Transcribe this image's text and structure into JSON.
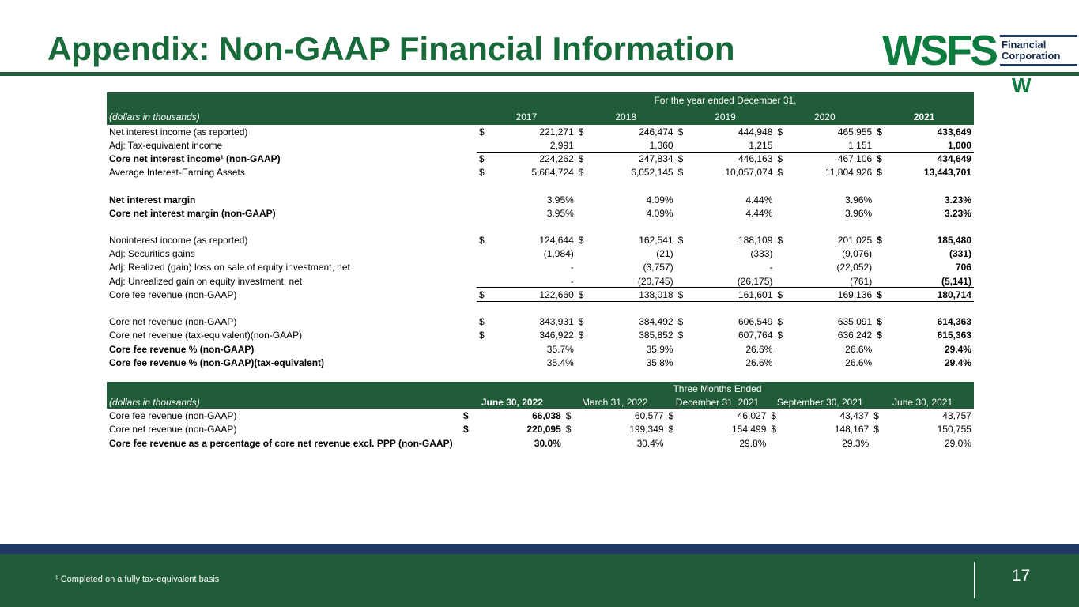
{
  "slide": {
    "title": "Appendix: Non-GAAP Financial Information",
    "page_number": "17",
    "footnote": "¹ Completed on a fully tax-equivalent basis"
  },
  "logo": {
    "wordmark": "WSFS",
    "name_line1": "Financial",
    "name_line2": "Corporation",
    "flourish": "W"
  },
  "colors": {
    "green": "#215C38",
    "navy": "#1F3864",
    "logo_green": "#0E7C3F",
    "title_green": "#186A3B"
  },
  "annual_table": {
    "header_span": "For the year ended December 31,",
    "corner_label": "(dollars in thousands)",
    "columns": [
      "2017",
      "2018",
      "2019",
      "2020",
      "2021"
    ],
    "bold_col": 4,
    "rows": [
      {
        "label": "Net interest income (as reported)",
        "dollar": true,
        "values": [
          "221,271",
          "246,474",
          "444,948",
          "465,955",
          "433,649"
        ]
      },
      {
        "label": "Adj: Tax-equivalent income",
        "values": [
          "2,991",
          "1,360",
          "1,215",
          "1,151",
          "1,000"
        ]
      },
      {
        "label": "Core net interest income¹ (non-GAAP)",
        "bold": true,
        "dollar": true,
        "topline": true,
        "values": [
          "224,262",
          "247,834",
          "446,163",
          "467,106",
          "434,649"
        ]
      },
      {
        "label": "Average Interest-Earning Assets",
        "dollar": true,
        "values": [
          "5,684,724",
          "6,052,145",
          "10,057,074",
          "11,804,926",
          "13,443,701"
        ]
      },
      {
        "spacer": true
      },
      {
        "label": "Net interest margin",
        "bold": true,
        "values": [
          "3.95%",
          "4.09%",
          "4.44%",
          "3.96%",
          "3.23%"
        ]
      },
      {
        "label": "Core net interest margin (non-GAAP)",
        "bold": true,
        "values": [
          "3.95%",
          "4.09%",
          "4.44%",
          "3.96%",
          "3.23%"
        ]
      },
      {
        "spacer": true
      },
      {
        "label": "Noninterest income (as reported)",
        "dollar": true,
        "values": [
          "124,644",
          "162,541",
          "188,109",
          "201,025",
          "185,480"
        ]
      },
      {
        "label": "Adj: Securities gains",
        "values": [
          "(1,984)",
          "(21)",
          "(333)",
          "(9,076)",
          "(331)"
        ]
      },
      {
        "label": "Adj: Realized (gain) loss on sale of equity investment, net",
        "values": [
          "-",
          "(3,757)",
          "-",
          "(22,052)",
          "706"
        ]
      },
      {
        "label": "Adj: Unrealized gain on equity investment, net",
        "values": [
          "-",
          "(20,745)",
          "(26,175)",
          "(761)",
          "(5,141)"
        ]
      },
      {
        "label": "Core fee revenue (non-GAAP)",
        "dollar": true,
        "topline": true,
        "bottomline": true,
        "values": [
          "122,660",
          "138,018",
          "161,601",
          "169,136",
          "180,714"
        ]
      },
      {
        "spacer": true
      },
      {
        "label": "Core net revenue (non-GAAP)",
        "dollar": true,
        "values": [
          "343,931",
          "384,492",
          "606,549",
          "635,091",
          "614,363"
        ]
      },
      {
        "label": "Core net revenue (tax-equivalent)(non-GAAP)",
        "dollar": true,
        "values": [
          "346,922",
          "385,852",
          "607,764",
          "636,242",
          "615,363"
        ]
      },
      {
        "label": "Core fee revenue % (non-GAAP)",
        "bold": true,
        "values": [
          "35.7%",
          "35.9%",
          "26.6%",
          "26.6%",
          "29.4%"
        ]
      },
      {
        "label": "Core fee revenue % (non-GAAP)(tax-equivalent)",
        "bold": true,
        "values": [
          "35.4%",
          "35.8%",
          "26.6%",
          "26.6%",
          "29.4%"
        ]
      }
    ]
  },
  "quarterly_table": {
    "header_span": "Three Months Ended",
    "corner_label": "(dollars in thousands)",
    "columns": [
      "June 30, 2022",
      "March 31, 2022",
      "December 31, 2021",
      "September 30, 2021",
      "June 30, 2021"
    ],
    "bold_col": 0,
    "rows": [
      {
        "label": "Core fee revenue (non-GAAP)",
        "dollar": true,
        "values": [
          "66,038",
          "60,577",
          "46,027",
          "43,437",
          "43,757"
        ]
      },
      {
        "label": "Core net revenue (non-GAAP)",
        "dollar": true,
        "values": [
          "220,095",
          "199,349",
          "154,499",
          "148,167",
          "150,755"
        ]
      },
      {
        "label": "Core fee revenue as a percentage of core net revenue excl. PPP (non-GAAP)",
        "bold": true,
        "values": [
          "30.0%",
          "30.4%",
          "29.8%",
          "29.3%",
          "29.0%"
        ]
      }
    ]
  }
}
